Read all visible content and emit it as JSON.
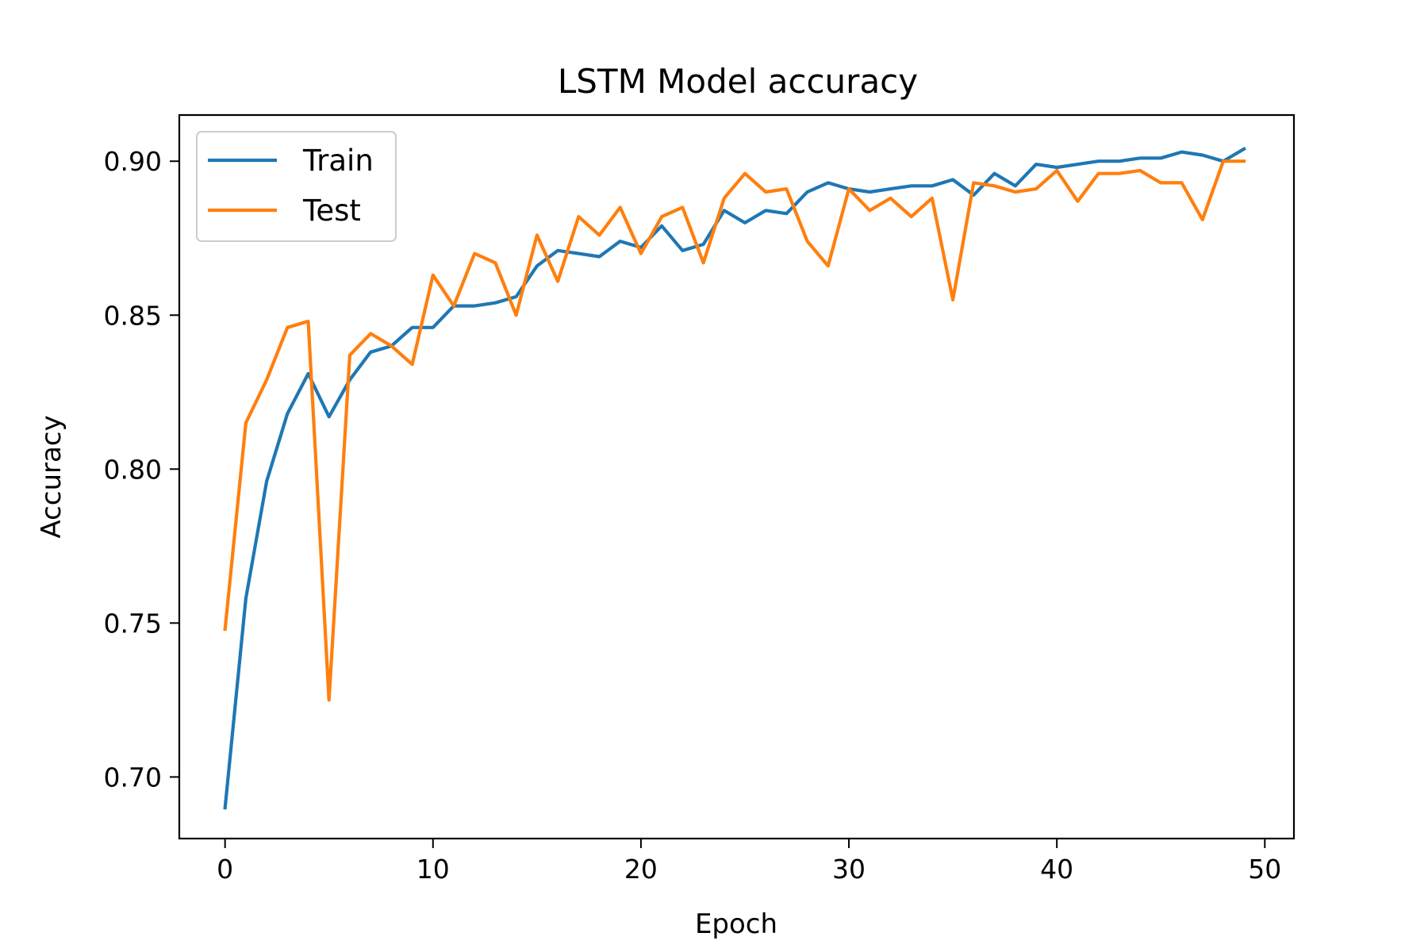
{
  "chart_data": {
    "type": "line",
    "title": "LSTM Model accuracy",
    "xlabel": "Epoch",
    "ylabel": "Accuracy",
    "xlim": [
      -2.2,
      51.4
    ],
    "ylim": [
      0.68,
      0.915
    ],
    "xticks": [
      0,
      10,
      20,
      30,
      40,
      50
    ],
    "yticks": [
      0.7,
      0.75,
      0.8,
      0.85,
      0.9
    ],
    "ytick_labels": [
      "0.70",
      "0.75",
      "0.80",
      "0.85",
      "0.90"
    ],
    "grid": false,
    "legend_position": "top-left",
    "x": [
      0,
      1,
      2,
      3,
      4,
      5,
      6,
      7,
      8,
      9,
      10,
      11,
      12,
      13,
      14,
      15,
      16,
      17,
      18,
      19,
      20,
      21,
      22,
      23,
      24,
      25,
      26,
      27,
      28,
      29,
      30,
      31,
      32,
      33,
      34,
      35,
      36,
      37,
      38,
      39,
      40,
      41,
      42,
      43,
      44,
      45,
      46,
      47,
      48,
      49
    ],
    "series": [
      {
        "name": "Train",
        "color": "#1f77b4",
        "values": [
          0.69,
          0.758,
          0.796,
          0.818,
          0.831,
          0.817,
          0.829,
          0.838,
          0.84,
          0.846,
          0.846,
          0.853,
          0.853,
          0.854,
          0.856,
          0.866,
          0.871,
          0.87,
          0.869,
          0.874,
          0.872,
          0.879,
          0.871,
          0.873,
          0.884,
          0.88,
          0.884,
          0.883,
          0.89,
          0.893,
          0.891,
          0.89,
          0.891,
          0.892,
          0.892,
          0.894,
          0.889,
          0.896,
          0.892,
          0.899,
          0.898,
          0.899,
          0.9,
          0.9,
          0.901,
          0.901,
          0.903,
          0.902,
          0.9,
          0.904
        ]
      },
      {
        "name": "Test",
        "color": "#ff7f0e",
        "values": [
          0.748,
          0.815,
          0.829,
          0.846,
          0.848,
          0.725,
          0.837,
          0.844,
          0.84,
          0.834,
          0.863,
          0.853,
          0.87,
          0.867,
          0.85,
          0.876,
          0.861,
          0.882,
          0.876,
          0.885,
          0.87,
          0.882,
          0.885,
          0.867,
          0.888,
          0.896,
          0.89,
          0.891,
          0.874,
          0.866,
          0.891,
          0.884,
          0.888,
          0.882,
          0.888,
          0.855,
          0.893,
          0.892,
          0.89,
          0.891,
          0.897,
          0.887,
          0.896,
          0.896,
          0.897,
          0.893,
          0.893,
          0.881,
          0.9,
          0.9
        ]
      }
    ]
  }
}
